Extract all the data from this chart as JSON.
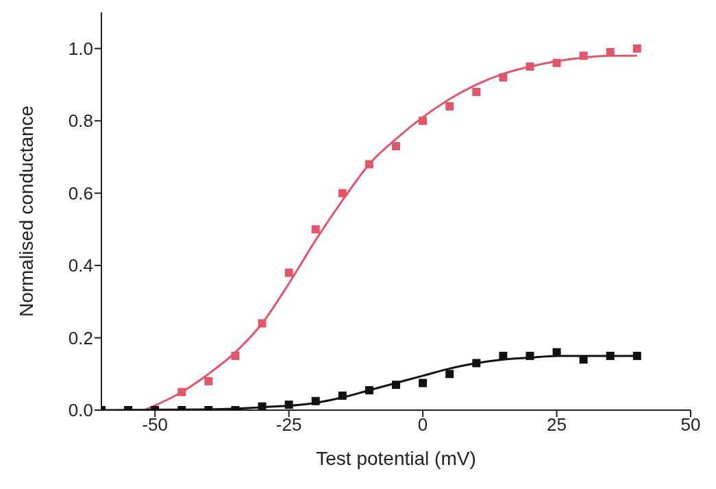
{
  "chart_data": {
    "type": "scatter",
    "xlabel": "Test potential (mV)",
    "ylabel": "Normalised conductance",
    "xlim": [
      -60,
      50
    ],
    "xticks": [
      -50,
      -25,
      0,
      25,
      50
    ],
    "ylim": [
      0,
      1.1
    ],
    "yticks": [
      {
        "value": 0,
        "label": "0.0"
      },
      {
        "value": 0.2,
        "label": "0.2"
      },
      {
        "value": 0.4,
        "label": "0.4"
      },
      {
        "value": 0.6,
        "label": "0.6"
      },
      {
        "value": 0.8,
        "label": "0.8"
      },
      {
        "value": 1,
        "label": "1.0"
      }
    ],
    "grid": false,
    "legend": false,
    "series": [
      {
        "marker": "square",
        "color": "#e0566a",
        "x": [
          -45,
          -40,
          -35,
          -30,
          -25,
          -20,
          -15,
          -10,
          -5,
          0,
          5,
          10,
          15,
          20,
          25,
          30,
          35,
          40
        ],
        "values": [
          0.05,
          0.08,
          0.15,
          0.24,
          0.38,
          0.5,
          0.6,
          0.68,
          0.73,
          0.8,
          0.84,
          0.88,
          0.92,
          0.95,
          0.96,
          0.98,
          0.99,
          1.0
        ]
      },
      {
        "marker": "square",
        "color": "#111111",
        "x": [
          -60,
          -55,
          -50,
          -45,
          -40,
          -35,
          -30,
          -25,
          -20,
          -15,
          -10,
          -5,
          0,
          5,
          10,
          15,
          20,
          25,
          30,
          35,
          40
        ],
        "values": [
          0,
          0,
          0,
          0,
          0,
          0,
          0.01,
          0.015,
          0.025,
          0.04,
          0.055,
          0.07,
          0.075,
          0.1,
          0.13,
          0.15,
          0.15,
          0.16,
          0.14,
          0.15,
          0.15
        ]
      },
      {
        "type": "line",
        "marker": "none",
        "color": "#e0566a",
        "x": [
          -52,
          -45,
          -40,
          -35,
          -30,
          -25,
          -20,
          -15,
          -10,
          -5,
          0,
          5,
          10,
          15,
          20,
          25,
          30,
          35,
          40
        ],
        "values": [
          0,
          0.05,
          0.1,
          0.16,
          0.24,
          0.35,
          0.47,
          0.58,
          0.68,
          0.75,
          0.81,
          0.86,
          0.9,
          0.93,
          0.95,
          0.965,
          0.975,
          0.98,
          0.98
        ]
      },
      {
        "type": "line",
        "marker": "none",
        "color": "#111111",
        "x": [
          -60,
          -40,
          -30,
          -20,
          -15,
          -10,
          -5,
          0,
          5,
          10,
          15,
          20,
          25,
          30,
          35,
          40
        ],
        "values": [
          0,
          0.002,
          0.008,
          0.02,
          0.035,
          0.055,
          0.075,
          0.095,
          0.115,
          0.13,
          0.14,
          0.145,
          0.15,
          0.15,
          0.15,
          0.15
        ]
      }
    ]
  }
}
